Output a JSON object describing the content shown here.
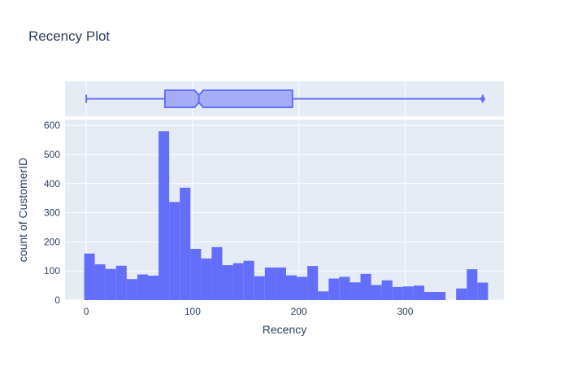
{
  "chart_data": {
    "type": "histogram",
    "title": "Recency Plot",
    "xlabel": "Recency",
    "ylabel": "count of CustomerID",
    "xlim": [
      -20,
      393
    ],
    "ylim": [
      0,
      620
    ],
    "x_ticks": [
      0,
      100,
      200,
      300
    ],
    "y_ticks": [
      0,
      100,
      200,
      300,
      400,
      500,
      600
    ],
    "bin_width": 10,
    "bins_start": -2,
    "counts": [
      160,
      123,
      107,
      118,
      72,
      88,
      84,
      580,
      337,
      386,
      176,
      143,
      182,
      120,
      127,
      135,
      82,
      112,
      112,
      85,
      80,
      117,
      30,
      74,
      80,
      61,
      90,
      52,
      68,
      45,
      47,
      50,
      28,
      28,
      0,
      40,
      106,
      60
    ],
    "box": {
      "min": 0,
      "q1": 74,
      "median": 106,
      "notch_low": 102,
      "notch_high": 110,
      "q3": 194,
      "max": 373
    },
    "grid": true,
    "colors": {
      "bar": "#636efa",
      "box_line": "#636efa",
      "box_fill": "rgba(99,110,250,0.5)",
      "plot_bg": "#e5ecf6",
      "grid": "#ffffff",
      "text": "#2a3f5f"
    }
  }
}
